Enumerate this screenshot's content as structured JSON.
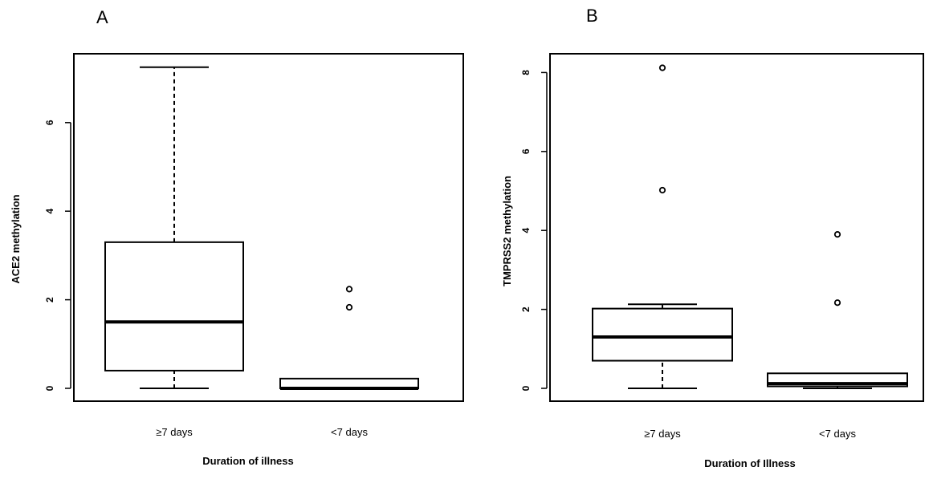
{
  "chart_data": [
    {
      "type": "boxplot",
      "panel": "A",
      "title": "",
      "xlabel": "Duration of illness",
      "ylabel": "ACE2 methylation",
      "ylim": [
        0,
        7.5
      ],
      "yticks": [
        0,
        2,
        4,
        6
      ],
      "grid": false,
      "categories": [
        "≥7 days",
        "<7 days"
      ],
      "boxes": [
        {
          "category": "≥7 days",
          "whisker_low": 0,
          "q1": 0.4,
          "median": 1.5,
          "q3": 3.3,
          "whisker_high": 7.25,
          "outliers": []
        },
        {
          "category": "<7 days",
          "whisker_low": 0,
          "q1": 0,
          "median": 0,
          "q3": 0.22,
          "whisker_high": 0.22,
          "outliers": [
            1.83,
            2.24
          ]
        }
      ]
    },
    {
      "type": "boxplot",
      "panel": "B",
      "title": "",
      "xlabel": "Duration of Illness",
      "ylabel": "TMPRSS2 methylation",
      "ylim": [
        0,
        8.4
      ],
      "yticks": [
        0,
        2,
        4,
        6,
        8
      ],
      "grid": false,
      "categories": [
        "≥7 days",
        "<7 days"
      ],
      "boxes": [
        {
          "category": "≥7 days",
          "whisker_low": 0,
          "q1": 0.7,
          "median": 1.3,
          "q3": 2.02,
          "whisker_high": 2.13,
          "outliers": [
            5.02,
            8.12
          ]
        },
        {
          "category": "<7 days",
          "whisker_low": 0,
          "q1": 0.05,
          "median": 0.12,
          "q3": 0.38,
          "whisker_high": 0.38,
          "outliers": [
            2.17,
            3.9
          ]
        }
      ]
    }
  ]
}
